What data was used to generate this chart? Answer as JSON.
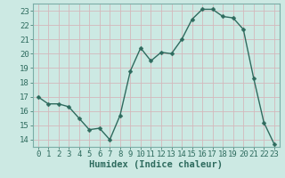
{
  "x": [
    0,
    1,
    2,
    3,
    4,
    5,
    6,
    7,
    8,
    9,
    10,
    11,
    12,
    13,
    14,
    15,
    16,
    17,
    18,
    19,
    20,
    21,
    22,
    23
  ],
  "y": [
    17.0,
    16.5,
    16.5,
    16.3,
    15.5,
    14.7,
    14.8,
    14.0,
    15.7,
    18.8,
    20.4,
    19.5,
    20.1,
    20.0,
    21.0,
    22.4,
    23.1,
    23.1,
    22.6,
    22.5,
    21.7,
    18.3,
    15.2,
    13.7
  ],
  "line_color": "#2e6b5e",
  "marker": "D",
  "marker_size": 2.5,
  "bg_color": "#cce9e3",
  "grid_color": "#b8d8d2",
  "xlabel": "Humidex (Indice chaleur)",
  "ylabel": "",
  "xlim": [
    -0.5,
    23.5
  ],
  "ylim": [
    13.5,
    23.5
  ],
  "yticks": [
    14,
    15,
    16,
    17,
    18,
    19,
    20,
    21,
    22,
    23
  ],
  "xticks": [
    0,
    1,
    2,
    3,
    4,
    5,
    6,
    7,
    8,
    9,
    10,
    11,
    12,
    13,
    14,
    15,
    16,
    17,
    18,
    19,
    20,
    21,
    22,
    23
  ],
  "tick_fontsize": 6.5,
  "xlabel_fontsize": 7.5,
  "axis_color": "#2e6b5e",
  "spine_color": "#7aada6"
}
